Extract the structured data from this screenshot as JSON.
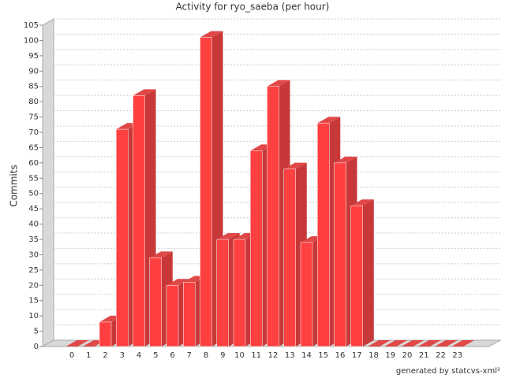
{
  "chart_data": {
    "type": "bar3d",
    "title": "Activity for ryo_saeba (per hour)",
    "ylabel": "Commits",
    "footer": "generated by statcvs-xml²",
    "categories": [
      "0",
      "1",
      "2",
      "3",
      "4",
      "5",
      "6",
      "7",
      "8",
      "9",
      "10",
      "11",
      "12",
      "13",
      "14",
      "15",
      "16",
      "17",
      "18",
      "19",
      "20",
      "21",
      "22",
      "23"
    ],
    "values": [
      0,
      0,
      8,
      71,
      82,
      29,
      20,
      21,
      101,
      35,
      35,
      64,
      85,
      58,
      34,
      73,
      60,
      46,
      0,
      0,
      0,
      0,
      0,
      0
    ],
    "color": "#ff4040",
    "ylim": [
      0,
      105
    ],
    "yticks": [
      0,
      5,
      10,
      15,
      20,
      25,
      30,
      35,
      40,
      45,
      50,
      55,
      60,
      65,
      70,
      75,
      80,
      85,
      90,
      95,
      100,
      105
    ],
    "grid": true
  }
}
